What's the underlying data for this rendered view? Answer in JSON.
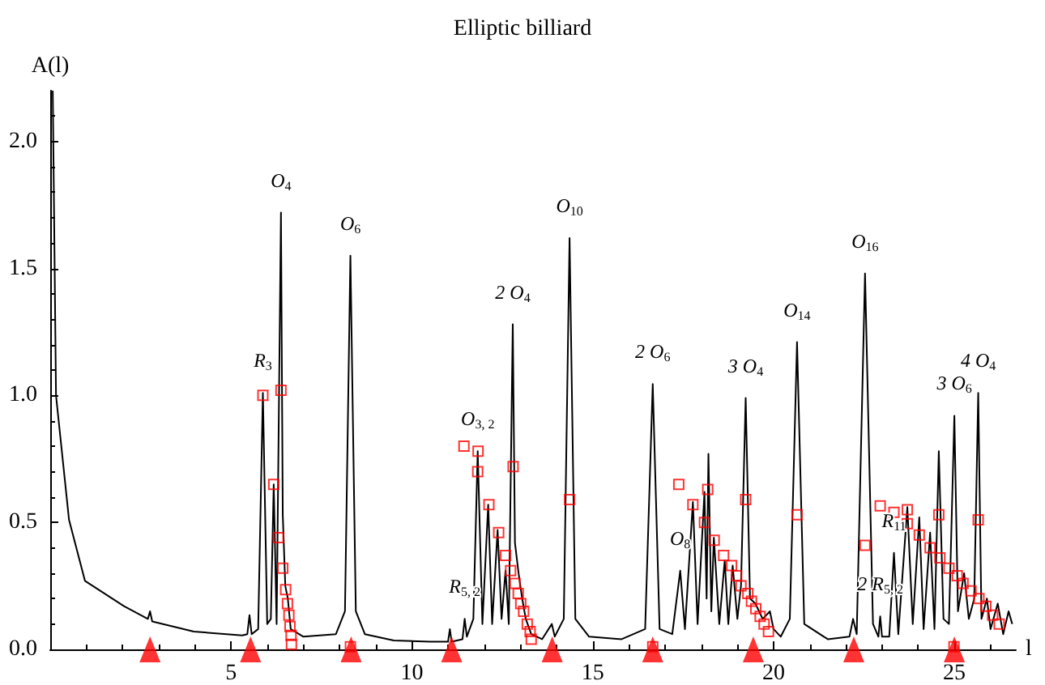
{
  "chart_data": {
    "type": "line",
    "title": "Elliptic billiard",
    "xlabel": "l",
    "ylabel": "A(l)",
    "xlim": [
      0,
      26.7
    ],
    "xticks": [
      5,
      10,
      15,
      20,
      25
    ],
    "ylim": [
      0,
      2.2
    ],
    "yticks": [
      {
        "value": 0,
        "label": "0.0"
      },
      {
        "value": 0.5,
        "label": "0.5"
      },
      {
        "value": 1,
        "label": "1.0"
      },
      {
        "value": 1.5,
        "label": "1.5"
      },
      {
        "value": 2,
        "label": "2.0"
      }
    ],
    "grid": false,
    "series": [
      {
        "color": "#000000",
        "marker": "none",
        "line_style": "solid",
        "x": [
          0.07,
          0.16,
          0.52,
          0.96,
          2.04,
          2.7,
          2.76,
          2.82,
          3.97,
          5.31,
          5.45,
          5.51,
          5.57,
          5.75,
          5.88,
          6.0,
          6.1,
          6.18,
          6.26,
          6.38,
          6.43,
          6.5,
          6.57,
          6.65,
          7.0,
          7.9,
          8.15,
          8.3,
          8.45,
          8.7,
          9.5,
          10.5,
          11.0,
          11.05,
          11.1,
          11.4,
          11.46,
          11.52,
          11.7,
          11.82,
          11.95,
          12.11,
          12.22,
          12.37,
          12.48,
          12.59,
          12.68,
          12.79,
          12.85,
          12.95,
          13.05,
          13.15,
          13.3,
          13.6,
          13.87,
          13.95,
          14.2,
          14.36,
          14.52,
          14.9,
          15.8,
          16.45,
          16.66,
          16.85,
          17.2,
          17.42,
          17.55,
          17.77,
          17.9,
          18.09,
          18.15,
          18.2,
          18.28,
          18.35,
          18.5,
          18.65,
          18.75,
          18.87,
          19.0,
          19.1,
          19.23,
          19.35,
          19.5,
          19.7,
          19.9,
          20.0,
          20.2,
          20.45,
          20.65,
          20.85,
          21.5,
          22.1,
          22.2,
          22.3,
          22.53,
          22.75,
          22.9,
          22.95,
          23.0,
          23.2,
          23.33,
          23.45,
          23.7,
          23.85,
          24.03,
          24.15,
          24.33,
          24.45,
          24.57,
          24.7,
          24.85,
          25.0,
          25.1,
          25.27,
          25.4,
          25.55,
          25.66,
          25.75,
          25.9,
          26.0,
          26.2,
          26.35,
          26.5,
          26.6
        ],
        "values": [
          2.2,
          1.0,
          0.51,
          0.27,
          0.17,
          0.12,
          0.15,
          0.11,
          0.07,
          0.055,
          0.06,
          0.135,
          0.06,
          0.08,
          1.01,
          0.1,
          0.12,
          0.65,
          0.1,
          1.72,
          0.53,
          0.25,
          0.2,
          0.08,
          0.05,
          0.06,
          0.15,
          1.55,
          0.15,
          0.06,
          0.035,
          0.03,
          0.03,
          0.08,
          0.03,
          0.04,
          0.12,
          0.05,
          0.12,
          0.78,
          0.1,
          0.57,
          0.1,
          0.47,
          0.12,
          0.31,
          0.1,
          1.28,
          0.42,
          0.3,
          0.2,
          0.12,
          0.06,
          0.04,
          0.1,
          0.05,
          0.12,
          1.62,
          0.12,
          0.05,
          0.04,
          0.08,
          1.045,
          0.08,
          0.06,
          0.31,
          0.08,
          0.58,
          0.1,
          0.62,
          0.2,
          0.77,
          0.15,
          0.44,
          0.1,
          0.35,
          0.1,
          0.33,
          0.12,
          0.25,
          0.99,
          0.2,
          0.18,
          0.12,
          0.15,
          0.08,
          0.05,
          0.12,
          1.21,
          0.1,
          0.04,
          0.05,
          0.12,
          0.06,
          1.48,
          0.1,
          0.05,
          0.13,
          0.05,
          0.05,
          0.38,
          0.06,
          0.56,
          0.1,
          0.52,
          0.08,
          0.46,
          0.08,
          0.78,
          0.12,
          0.1,
          0.92,
          0.15,
          0.3,
          0.12,
          0.2,
          1.01,
          0.12,
          0.2,
          0.08,
          0.18,
          0.06,
          0.15,
          0.1
        ]
      },
      {
        "type": "scatter",
        "color": "#ff0000",
        "marker": "square",
        "x": [
          5.88,
          6.38,
          6.18,
          6.31,
          6.43,
          6.51,
          6.56,
          6.6,
          6.63,
          6.66,
          6.67,
          8.3,
          11.44,
          11.83,
          11.82,
          12.13,
          12.4,
          12.59,
          12.8,
          12.73,
          12.85,
          12.94,
          13.01,
          13.09,
          13.19,
          13.27,
          13.3,
          14.36,
          16.66,
          17.38,
          17.77,
          18.18,
          18.09,
          18.36,
          18.62,
          18.84,
          18.98,
          19.1,
          19.23,
          19.29,
          19.39,
          19.51,
          19.63,
          19.74,
          19.86,
          20.65,
          22.53,
          22.95,
          23.33,
          23.7,
          23.7,
          24.03,
          24.33,
          24.57,
          24.6,
          24.85,
          25.08,
          25.24,
          25.66,
          25.46,
          25.68,
          25.87,
          26.06,
          26.24,
          24.99
        ],
        "values": [
          1.0,
          1.02,
          0.65,
          0.44,
          0.32,
          0.235,
          0.18,
          0.135,
          0.09,
          0.055,
          0.02,
          0.01,
          0.8,
          0.78,
          0.7,
          0.57,
          0.46,
          0.37,
          0.72,
          0.31,
          0.26,
          0.22,
          0.18,
          0.15,
          0.1,
          0.07,
          0.04,
          0.59,
          0.01,
          0.65,
          0.57,
          0.63,
          0.5,
          0.43,
          0.37,
          0.33,
          0.29,
          0.25,
          0.59,
          0.22,
          0.19,
          0.16,
          0.13,
          0.1,
          0.07,
          0.53,
          0.41,
          0.565,
          0.54,
          0.55,
          0.495,
          0.45,
          0.4,
          0.53,
          0.36,
          0.32,
          0.29,
          0.26,
          0.51,
          0.23,
          0.2,
          0.17,
          0.135,
          0.1,
          0.01
        ]
      },
      {
        "type": "scatter",
        "color": "#ff0000",
        "marker": "triangle",
        "x": [
          2.76,
          5.54,
          8.32,
          11.1,
          13.88,
          16.66,
          19.44,
          22.22,
          25.0
        ],
        "values": [
          0,
          0,
          0,
          0,
          0,
          0,
          0,
          0,
          0
        ]
      }
    ],
    "annotations": [
      {
        "text": "O$_{4}$",
        "x": 6.38,
        "y": 1.72
      },
      {
        "text": "O$_{6}$",
        "x": 8.3,
        "y": 1.55
      },
      {
        "text": "R$_{3}$",
        "x": 5.88,
        "y": 1.01
      },
      {
        "text": "O$_{3, 2}$",
        "x": 11.82,
        "y": 0.78
      },
      {
        "text": "R$_{5, 2}$",
        "x": 11.46,
        "y": 0.12
      },
      {
        "text": "2 O$_{4}$",
        "x": 12.79,
        "y": 1.28
      },
      {
        "text": "O$_{10}$",
        "x": 14.36,
        "y": 1.62
      },
      {
        "text": "2 O$_{6}$",
        "x": 16.66,
        "y": 1.045
      },
      {
        "text": "O$_{8}$",
        "x": 17.42,
        "y": 0.31
      },
      {
        "text": "3 O$_{4}$",
        "x": 19.23,
        "y": 0.99
      },
      {
        "text": "O$_{14}$",
        "x": 20.65,
        "y": 1.21
      },
      {
        "text": "O$_{16}$",
        "x": 22.53,
        "y": 1.48
      },
      {
        "text": "R$_{11}$",
        "x": 23.33,
        "y": 0.38
      },
      {
        "text": "2 R$_{5, 2}$",
        "x": 22.95,
        "y": 0.13
      },
      {
        "text": "3 O$_{6}$",
        "x": 25.0,
        "y": 0.92
      },
      {
        "text": "4 O$_{4}$",
        "x": 25.66,
        "y": 1.01
      }
    ]
  }
}
